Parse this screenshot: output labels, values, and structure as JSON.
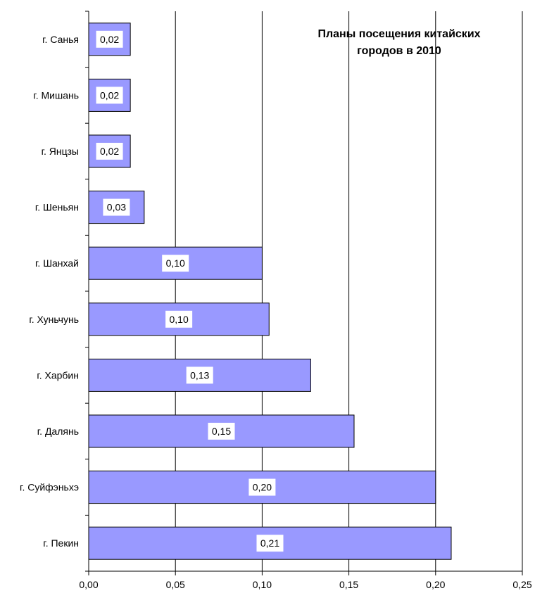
{
  "chart_data": {
    "type": "bar",
    "orientation": "horizontal",
    "title": "Планы посещения китайских\nгородов в 2010",
    "xlabel": "",
    "ylabel": "",
    "xlim": [
      0,
      0.25
    ],
    "x_ticks": [
      "0,00",
      "0,05",
      "0,10",
      "0,15",
      "0,20",
      "0,25"
    ],
    "grid": "vertical",
    "bar_color": "#9999ff",
    "categories": [
      "г. Санья",
      "г. Мишань",
      "г. Янцзы",
      "г. Шеньян",
      "г. Шанхай",
      "г. Хуньчунь",
      "г. Харбин",
      "г. Далянь",
      "г. Суйфэньхэ",
      "г. Пекин"
    ],
    "values": [
      0.024,
      0.024,
      0.024,
      0.032,
      0.1,
      0.104,
      0.128,
      0.153,
      0.2,
      0.209
    ],
    "data_labels": [
      "0,02",
      "0,02",
      "0,02",
      "0,03",
      "0,10",
      "0,10",
      "0,13",
      "0,15",
      "0,20",
      "0,21"
    ]
  }
}
